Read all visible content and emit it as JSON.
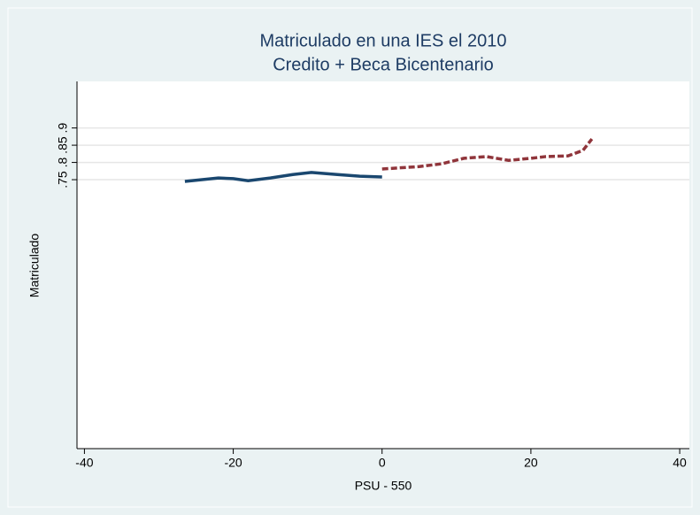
{
  "chart_data": {
    "type": "line",
    "title": [
      "Matriculado en una IES el 2010",
      "Credito + Beca Bicentenario"
    ],
    "x_label": "PSU - 550",
    "y_label": "Matriculado",
    "xlim": [
      -41,
      41.3
    ],
    "xticks": [
      -40,
      -20,
      0,
      20,
      40
    ],
    "ylim": [
      -0.03,
      1.035
    ],
    "yticks": [
      {
        "value": 0.75,
        "label": ".75"
      },
      {
        "value": 0.8,
        "label": ".8"
      },
      {
        "value": 0.85,
        "label": ".85"
      },
      {
        "value": 0.9,
        "label": ".9"
      }
    ],
    "grid": true,
    "series": [
      {
        "color": "#1a476f",
        "dash": false,
        "x": [
          -26.5,
          -22,
          -20,
          -18,
          -15,
          -12,
          -9.5,
          -6,
          -3,
          0
        ],
        "values": [
          0.745,
          0.755,
          0.753,
          0.747,
          0.755,
          0.765,
          0.771,
          0.765,
          0.76,
          0.758
        ]
      },
      {
        "color": "#90353b",
        "dash": true,
        "x": [
          0,
          5,
          8,
          11,
          14,
          17,
          20,
          22,
          25,
          27,
          28.2
        ],
        "values": [
          0.781,
          0.788,
          0.796,
          0.812,
          0.817,
          0.806,
          0.812,
          0.817,
          0.819,
          0.835,
          0.868
        ]
      }
    ]
  }
}
